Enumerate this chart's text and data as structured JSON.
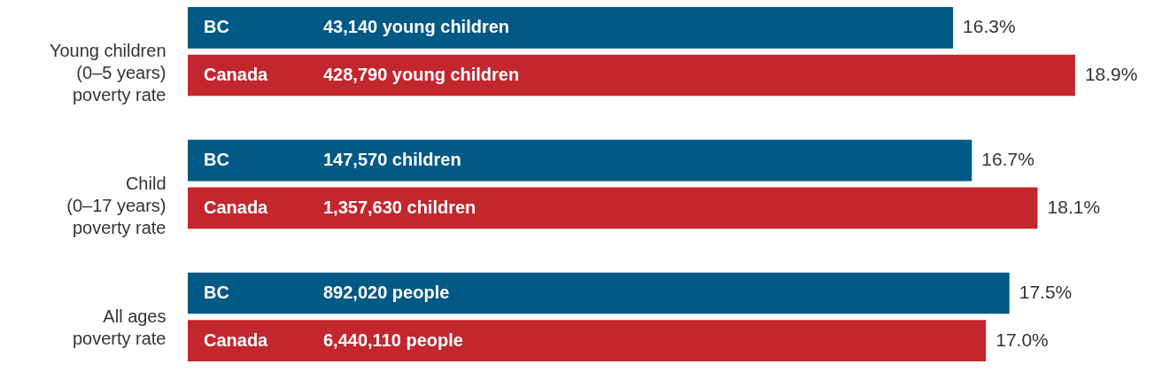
{
  "chart_data": {
    "type": "bar",
    "orientation": "horizontal",
    "categories": [
      "Young children\n(0–5 years)\npoverty rate",
      "Child\n(0–17 years)\npoverty rate",
      "All ages\npoverty rate"
    ],
    "series": [
      {
        "name": "BC",
        "color": "#015985",
        "values": [
          16.3,
          16.7,
          17.5
        ],
        "value_labels": [
          "16.3%",
          "16.7%",
          "17.5%"
        ]
      },
      {
        "name": "Canada",
        "color": "#c4262e",
        "values": [
          18.9,
          18.1,
          17.0
        ],
        "value_labels": [
          "18.9%",
          "18.1%",
          "17.0%"
        ]
      }
    ],
    "annotations": [
      "43,140 young children",
      "428,790 young children",
      "147,570 children",
      "1,357,630 children",
      "892,020 people",
      "6,440,110 people"
    ],
    "xlim": [
      0,
      20.75
    ],
    "tick_labels": false,
    "grid": false,
    "legend": false
  }
}
